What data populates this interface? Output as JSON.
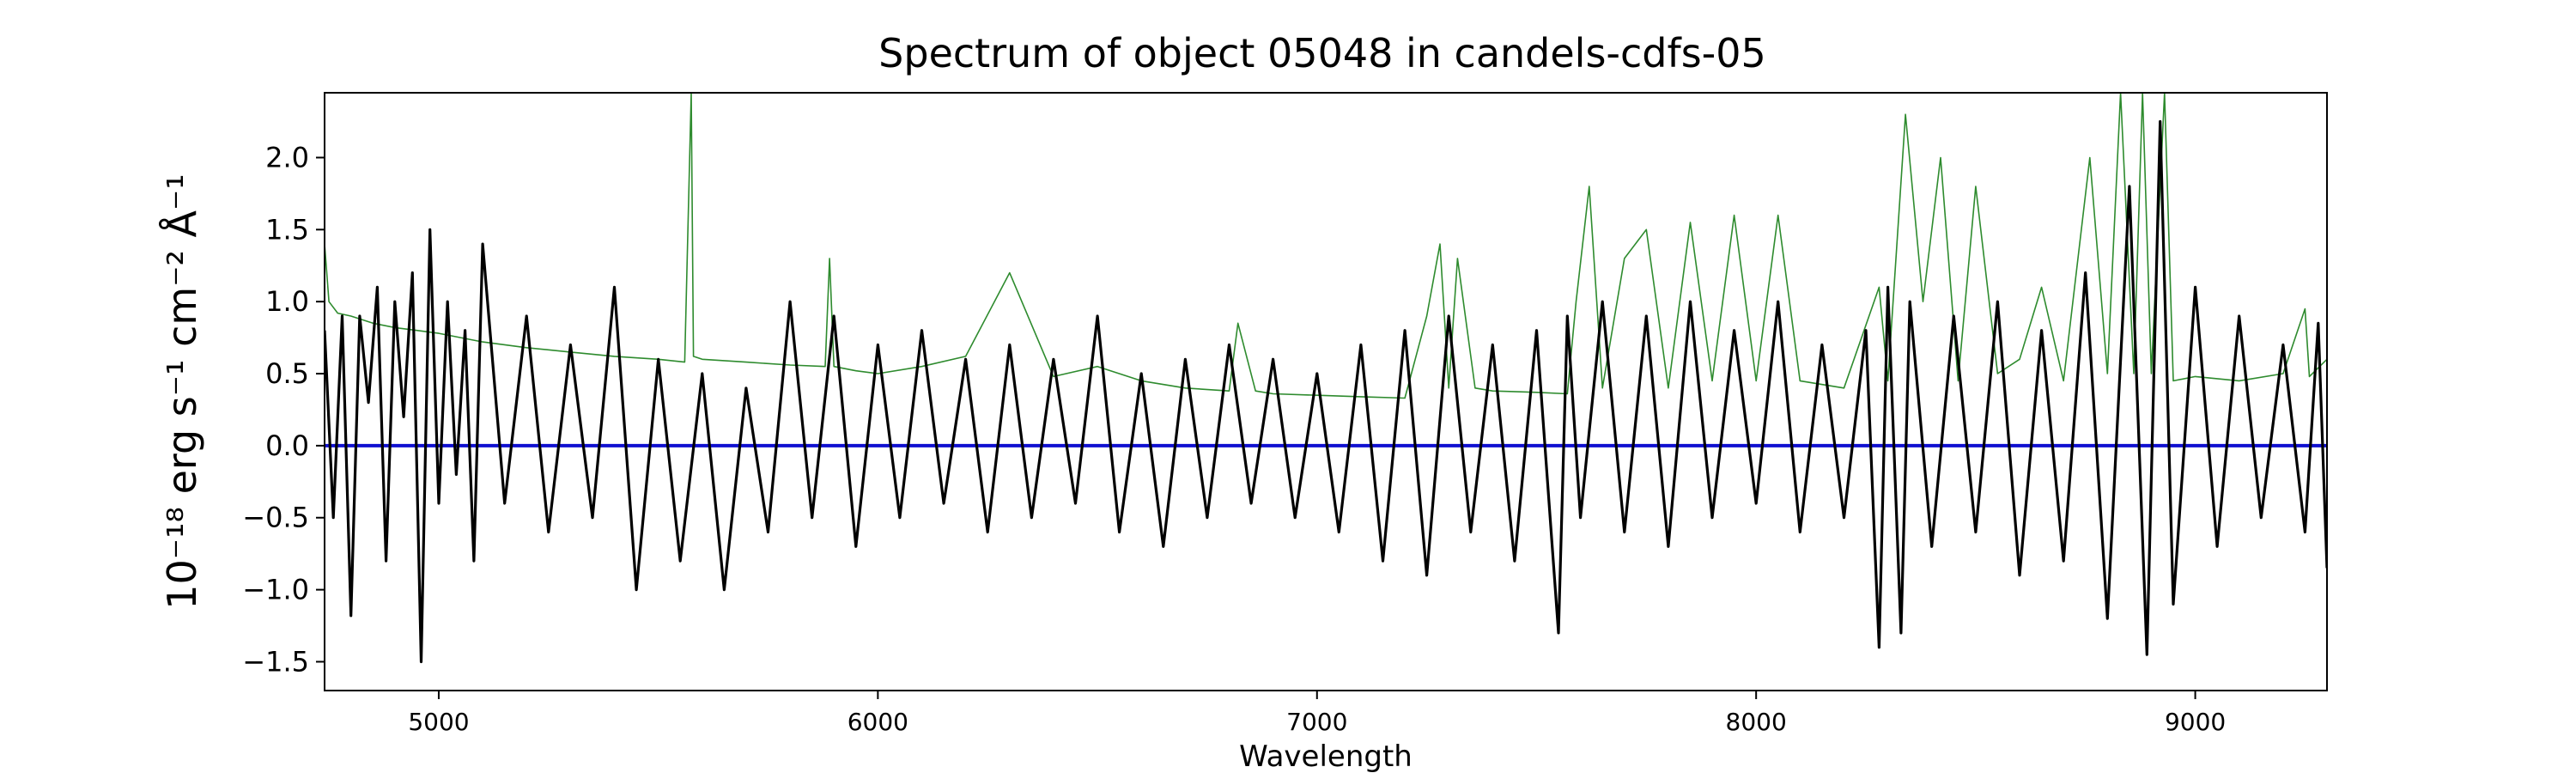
{
  "chart_data": {
    "type": "line",
    "title": "Spectrum of object 05048 in candels-cdfs-05",
    "xlabel": "Wavelength",
    "ylabel": "10⁻¹⁸ erg s⁻¹ cm⁻² Å⁻¹",
    "xlim": [
      4740,
      9300
    ],
    "ylim": [
      -1.7,
      2.45
    ],
    "x_ticks": [
      5000,
      6000,
      7000,
      8000,
      9000
    ],
    "y_ticks": [
      -1.5,
      -1.0,
      -0.5,
      0.0,
      0.5,
      1.0,
      1.5,
      2.0
    ],
    "y_tick_labels": [
      "−1.5",
      "−1.0",
      "−0.5",
      "0.0",
      "0.5",
      "1.0",
      "1.5",
      "2.0"
    ],
    "grid": false,
    "series": [
      {
        "role": "flux",
        "color": "#000000",
        "x": [
          4740,
          4760,
          4780,
          4800,
          4820,
          4840,
          4860,
          4880,
          4900,
          4920,
          4940,
          4960,
          4980,
          5000,
          5020,
          5040,
          5060,
          5080,
          5100,
          5150,
          5200,
          5250,
          5300,
          5350,
          5400,
          5450,
          5500,
          5550,
          5600,
          5650,
          5700,
          5750,
          5800,
          5850,
          5900,
          5950,
          6000,
          6050,
          6100,
          6150,
          6200,
          6250,
          6300,
          6350,
          6400,
          6450,
          6500,
          6550,
          6600,
          6650,
          6700,
          6750,
          6800,
          6850,
          6900,
          6950,
          7000,
          7050,
          7100,
          7150,
          7200,
          7250,
          7300,
          7350,
          7400,
          7450,
          7500,
          7550,
          7570,
          7600,
          7650,
          7700,
          7750,
          7800,
          7850,
          7900,
          7950,
          8000,
          8050,
          8100,
          8150,
          8200,
          8250,
          8280,
          8300,
          8330,
          8350,
          8400,
          8450,
          8500,
          8550,
          8600,
          8650,
          8700,
          8750,
          8800,
          8850,
          8890,
          8920,
          8950,
          9000,
          9050,
          9100,
          9150,
          9200,
          9250,
          9280,
          9300
        ],
        "y": [
          0.8,
          -0.5,
          0.9,
          -1.18,
          0.9,
          0.3,
          1.1,
          -0.8,
          1.0,
          0.2,
          1.2,
          -1.5,
          1.5,
          -0.4,
          1.0,
          -0.2,
          0.8,
          -0.8,
          1.4,
          -0.4,
          0.9,
          -0.6,
          0.7,
          -0.5,
          1.1,
          -1.0,
          0.6,
          -0.8,
          0.5,
          -1.0,
          0.4,
          -0.6,
          1.0,
          -0.5,
          0.9,
          -0.7,
          0.7,
          -0.5,
          0.8,
          -0.4,
          0.6,
          -0.6,
          0.7,
          -0.5,
          0.6,
          -0.4,
          0.9,
          -0.6,
          0.5,
          -0.7,
          0.6,
          -0.5,
          0.7,
          -0.4,
          0.6,
          -0.5,
          0.5,
          -0.6,
          0.7,
          -0.8,
          0.8,
          -0.9,
          0.9,
          -0.6,
          0.7,
          -0.8,
          0.8,
          -1.3,
          0.9,
          -0.5,
          1.0,
          -0.6,
          0.9,
          -0.7,
          1.0,
          -0.5,
          0.8,
          -0.4,
          1.0,
          -0.6,
          0.7,
          -0.5,
          0.8,
          -1.4,
          1.1,
          -1.3,
          1.0,
          -0.7,
          0.9,
          -0.6,
          1.0,
          -0.9,
          0.8,
          -0.8,
          1.2,
          -1.2,
          1.8,
          -1.45,
          2.25,
          -1.1,
          1.1,
          -0.7,
          0.9,
          -0.5,
          0.7,
          -0.6,
          0.85,
          -0.85
        ]
      },
      {
        "role": "error",
        "color": "#2e8b2e",
        "x": [
          4740,
          4750,
          4770,
          4800,
          4850,
          4900,
          4950,
          5000,
          5100,
          5200,
          5300,
          5400,
          5500,
          5560,
          5575,
          5580,
          5600,
          5700,
          5800,
          5880,
          5890,
          5900,
          5950,
          6000,
          6100,
          6200,
          6300,
          6400,
          6500,
          6600,
          6700,
          6800,
          6820,
          6860,
          6900,
          7000,
          7100,
          7200,
          7250,
          7280,
          7300,
          7320,
          7360,
          7400,
          7500,
          7570,
          7590,
          7620,
          7650,
          7700,
          7750,
          7800,
          7850,
          7900,
          7950,
          8000,
          8050,
          8100,
          8200,
          8280,
          8300,
          8340,
          8380,
          8420,
          8460,
          8500,
          8550,
          8600,
          8650,
          8700,
          8760,
          8800,
          8830,
          8860,
          8880,
          8900,
          8930,
          8950,
          9000,
          9100,
          9200,
          9250,
          9260,
          9300
        ],
        "y": [
          1.4,
          1.0,
          0.92,
          0.9,
          0.85,
          0.82,
          0.8,
          0.78,
          0.72,
          0.68,
          0.65,
          0.62,
          0.6,
          0.58,
          2.45,
          0.62,
          0.6,
          0.58,
          0.56,
          0.55,
          1.3,
          0.55,
          0.52,
          0.5,
          0.55,
          0.62,
          1.2,
          0.48,
          0.55,
          0.45,
          0.4,
          0.38,
          0.85,
          0.38,
          0.36,
          0.35,
          0.34,
          0.33,
          0.9,
          1.4,
          0.4,
          1.3,
          0.4,
          0.38,
          0.37,
          0.36,
          1.0,
          1.8,
          0.4,
          1.3,
          1.5,
          0.4,
          1.55,
          0.45,
          1.6,
          0.45,
          1.6,
          0.45,
          0.4,
          1.1,
          0.45,
          2.3,
          1.0,
          2.0,
          0.45,
          1.8,
          0.5,
          0.6,
          1.1,
          0.45,
          2.0,
          0.5,
          2.45,
          0.5,
          2.45,
          0.5,
          2.45,
          0.45,
          0.48,
          0.45,
          0.5,
          0.95,
          0.48,
          0.6
        ]
      },
      {
        "role": "zero",
        "color": "#1010d0",
        "x": [
          4740,
          9300
        ],
        "y": [
          0.0,
          0.0
        ]
      }
    ]
  }
}
